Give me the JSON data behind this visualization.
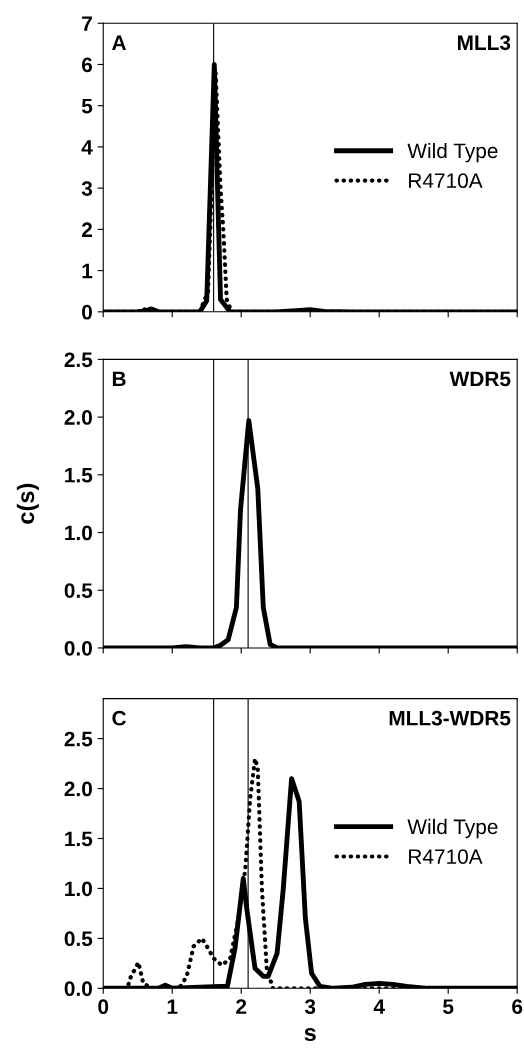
{
  "chart_data": [
    {
      "type": "line",
      "title": "MLL3",
      "annotations": [
        "A"
      ],
      "xlim": [
        0,
        6
      ],
      "xticks": [
        {
          "value": 0,
          "label": null
        },
        {
          "value": 1,
          "label": null
        },
        {
          "value": 2,
          "label": null
        },
        {
          "value": 3,
          "label": null
        },
        {
          "value": 4,
          "label": null
        },
        {
          "value": 5,
          "label": null
        },
        {
          "value": 6,
          "label": null
        }
      ],
      "ylim": [
        0,
        7
      ],
      "yticks": [
        0,
        1,
        2,
        3,
        4,
        5,
        6,
        7
      ],
      "tick_labels": "y",
      "legend": "center right",
      "grid": false,
      "marker": "none",
      "ref_lines": [
        {
          "axis": "x",
          "value": 1.6,
          "label": null,
          "color": "#000000"
        }
      ],
      "series": [
        {
          "name": "Wild Type",
          "color": "#000000",
          "line_style": "solid",
          "x": [
            0,
            0.5,
            0.62,
            0.7,
            0.8,
            1.0,
            1.4,
            1.5,
            1.61,
            1.7,
            1.84,
            2.5,
            2.8,
            3.0,
            3.2,
            3.6,
            6
          ],
          "values": [
            0,
            0,
            0.03,
            0.07,
            0,
            0,
            0,
            0.27,
            6.0,
            0.3,
            0,
            0,
            0.03,
            0.05,
            0.01,
            0,
            0
          ]
        },
        {
          "name": "R4710A",
          "color": "#000000",
          "line_style": "dotted",
          "x": [
            0,
            0.5,
            0.58,
            0.65,
            1.4,
            1.52,
            1.63,
            1.7,
            1.74,
            1.79,
            1.86,
            6
          ],
          "values": [
            0,
            0,
            0.08,
            0,
            0,
            0.5,
            5.8,
            3.0,
            2.0,
            0.3,
            0,
            0
          ]
        }
      ]
    },
    {
      "type": "line",
      "title": "WDR5",
      "annotations": [
        "B"
      ],
      "ylabel": "c(s)",
      "xlim": [
        0,
        6
      ],
      "xticks": [
        {
          "value": 0,
          "label": null
        },
        {
          "value": 1,
          "label": null
        },
        {
          "value": 2,
          "label": null
        },
        {
          "value": 3,
          "label": null
        },
        {
          "value": 4,
          "label": null
        },
        {
          "value": 5,
          "label": null
        },
        {
          "value": 6,
          "label": null
        }
      ],
      "ylim": [
        0,
        2.5
      ],
      "yticks": [
        {
          "value": 0,
          "label": "0.0"
        },
        0.5,
        {
          "value": 1,
          "label": "1.0"
        },
        1.5,
        {
          "value": 2,
          "label": "2.0"
        },
        2.5
      ],
      "tick_labels": "y",
      "grid": false,
      "marker": "none",
      "ref_lines": [
        {
          "axis": "x",
          "value": 1.6,
          "label": null,
          "color": "#000000"
        },
        {
          "axis": "x",
          "value": 2.1,
          "label": null,
          "color": "#000000"
        }
      ],
      "series": [
        {
          "color": "#000000",
          "line_style": "solid",
          "x": [
            0,
            1.0,
            1.2,
            1.4,
            1.6,
            1.69,
            1.81,
            1.93,
            1.99,
            2.11,
            2.24,
            2.32,
            2.42,
            2.52,
            6
          ],
          "values": [
            0,
            0,
            0.01,
            0,
            0,
            0.02,
            0.07,
            0.35,
            1.2,
            1.97,
            1.38,
            0.35,
            0.03,
            0,
            0
          ]
        }
      ]
    },
    {
      "type": "line",
      "title": "MLL3-WDR5",
      "annotations": [
        "C"
      ],
      "xlabel": "s",
      "xlim": [
        0,
        6
      ],
      "xticks": [
        0,
        1,
        2,
        3,
        4,
        5,
        6
      ],
      "ylim": [
        0,
        2.9
      ],
      "yticks": [
        {
          "value": 0,
          "label": "0.0"
        },
        0.5,
        {
          "value": 1,
          "label": "1.0"
        },
        1.5,
        {
          "value": 2,
          "label": "2.0"
        },
        2.5
      ],
      "legend": "center right",
      "grid": false,
      "marker": "none",
      "ref_lines": [
        {
          "axis": "x",
          "value": 1.6,
          "label": null,
          "color": "#000000"
        },
        {
          "axis": "x",
          "value": 2.1,
          "label": null,
          "color": "#000000"
        }
      ],
      "series": [
        {
          "name": "Wild Type",
          "color": "#000000",
          "line_style": "solid",
          "x": [
            0,
            0.8,
            0.9,
            1.0,
            1.8,
            1.91,
            2.03,
            2.08,
            2.2,
            2.32,
            2.39,
            2.52,
            2.61,
            2.73,
            2.84,
            2.93,
            3.02,
            3.14,
            3.34,
            3.6,
            3.8,
            4.0,
            4.2,
            4.4,
            4.7,
            6
          ],
          "values": [
            0,
            0,
            0.03,
            0,
            0.02,
            0.4,
            1.1,
            0.8,
            0.2,
            0.12,
            0.12,
            0.35,
            1.0,
            2.1,
            1.87,
            0.7,
            0.15,
            0.02,
            0,
            0.01,
            0.04,
            0.05,
            0.04,
            0.02,
            0,
            0
          ]
        },
        {
          "name": "R4710A",
          "color": "#000000",
          "line_style": "dotted",
          "x": [
            0,
            0.35,
            0.39,
            0.51,
            0.58,
            0.7,
            1.0,
            1.11,
            1.21,
            1.31,
            1.43,
            1.52,
            1.6,
            1.72,
            1.84,
            1.96,
            2.06,
            2.13,
            2.2,
            2.24,
            2.3,
            2.37,
            2.46,
            6
          ],
          "values": [
            0,
            0,
            0.1,
            0.26,
            0.05,
            0,
            0,
            0.01,
            0.12,
            0.42,
            0.5,
            0.4,
            0.3,
            0.23,
            0.3,
            0.7,
            1.2,
            1.9,
            2.3,
            2.2,
            1.0,
            0.2,
            0,
            0
          ]
        }
      ]
    }
  ]
}
